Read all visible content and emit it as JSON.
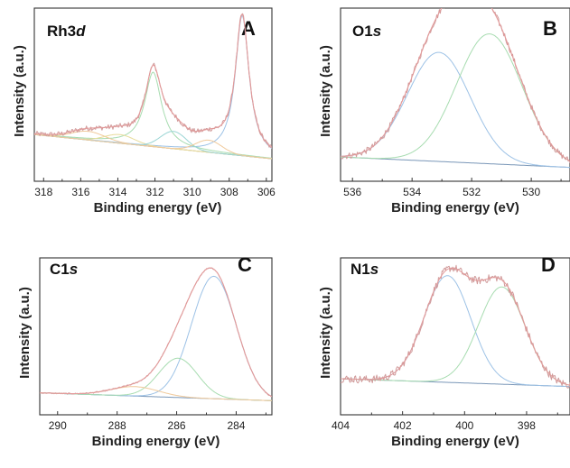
{
  "colors": {
    "raw": "#d09a9a",
    "envelope": "#e39a9a",
    "background": "#7a97b8",
    "peak_blue": "#9dc2e6",
    "peak_green": "#a7dcb0",
    "peak_orange": "#f0c99a",
    "peak_teal": "#9ad5d4",
    "peak_yellow": "#e8dc9a"
  },
  "chart_data": [
    {
      "type": "line",
      "panel": "A",
      "title": "Rh3d",
      "title_main": "Rh3",
      "title_suffix": "d",
      "xlabel": "Binding energy (eV)",
      "ylabel": "Intensity (a.u.)",
      "xlim": [
        318.5,
        305.7
      ],
      "x_reversed": true,
      "xticks": [
        318,
        316,
        314,
        312,
        310,
        308,
        306
      ],
      "ylim": [
        0,
        1
      ],
      "background": {
        "linear": [
          [
            318.5,
            0.27
          ],
          [
            305.7,
            0.13
          ]
        ]
      },
      "components": [
        {
          "center": 307.3,
          "height": 0.81,
          "width": 0.45,
          "shape": "lorentz",
          "color": "peak_blue"
        },
        {
          "center": 312.1,
          "height": 0.43,
          "width": 0.55,
          "shape": "lorentz",
          "color": "peak_green"
        },
        {
          "center": 315.6,
          "height": 0.05,
          "width": 0.9,
          "shape": "gauss",
          "color": "peak_orange"
        },
        {
          "center": 313.9,
          "height": 0.05,
          "width": 0.8,
          "shape": "gauss",
          "color": "peak_yellow"
        },
        {
          "center": 311.0,
          "height": 0.1,
          "width": 0.7,
          "shape": "gauss",
          "color": "peak_teal"
        },
        {
          "center": 309.1,
          "height": 0.07,
          "width": 0.7,
          "shape": "gauss",
          "color": "peak_orange"
        }
      ],
      "noise": 0.015
    },
    {
      "type": "line",
      "panel": "B",
      "title": "O1s",
      "title_main": "O1",
      "title_suffix": "s",
      "xlabel": "Binding energy (eV)",
      "ylabel": "Intensity (a.u.)",
      "xlim": [
        536.4,
        528.7
      ],
      "x_reversed": true,
      "xticks": [
        536,
        534,
        532,
        530
      ],
      "ylim": [
        0,
        1
      ],
      "background": {
        "linear": [
          [
            536.4,
            0.14
          ],
          [
            528.7,
            0.08
          ]
        ]
      },
      "components": [
        {
          "center": 533.1,
          "height": 0.63,
          "width": 1.05,
          "shape": "gauss",
          "color": "peak_blue"
        },
        {
          "center": 531.4,
          "height": 0.75,
          "width": 1.1,
          "shape": "gauss",
          "color": "peak_green"
        }
      ],
      "noise": 0.018
    },
    {
      "type": "line",
      "panel": "C",
      "title": "C1s",
      "title_main": "C1",
      "title_suffix": "s",
      "xlabel": "Binding energy (eV)",
      "ylabel": "Intensity (a.u.)",
      "xlim": [
        290.6,
        282.8
      ],
      "x_reversed": true,
      "xticks": [
        290,
        288,
        286,
        284
      ],
      "ylim": [
        0,
        1
      ],
      "background": {
        "linear": [
          [
            290.6,
            0.14
          ],
          [
            282.8,
            0.09
          ]
        ]
      },
      "components": [
        {
          "center": 284.75,
          "height": 0.78,
          "width": 0.75,
          "shape": "gauss",
          "color": "peak_blue"
        },
        {
          "center": 285.95,
          "height": 0.25,
          "width": 0.65,
          "shape": "gauss",
          "color": "peak_green"
        },
        {
          "center": 287.4,
          "height": 0.06,
          "width": 0.8,
          "shape": "gauss",
          "color": "peak_orange"
        }
      ],
      "noise": 0.004
    },
    {
      "type": "line",
      "panel": "D",
      "title": "N1s",
      "title_main": "N1",
      "title_suffix": "s",
      "xlabel": "Binding energy (eV)",
      "ylabel": "Intensity (a.u.)",
      "xlim": [
        404.0,
        396.6
      ],
      "x_reversed": true,
      "xticks": [
        404,
        402,
        400,
        398
      ],
      "ylim": [
        0,
        1
      ],
      "background": {
        "linear": [
          [
            404.0,
            0.23
          ],
          [
            396.6,
            0.18
          ]
        ]
      },
      "components": [
        {
          "center": 400.55,
          "height": 0.68,
          "width": 0.75,
          "shape": "gauss",
          "color": "peak_blue"
        },
        {
          "center": 398.8,
          "height": 0.62,
          "width": 0.75,
          "shape": "gauss",
          "color": "peak_green"
        }
      ],
      "noise": 0.025
    }
  ]
}
